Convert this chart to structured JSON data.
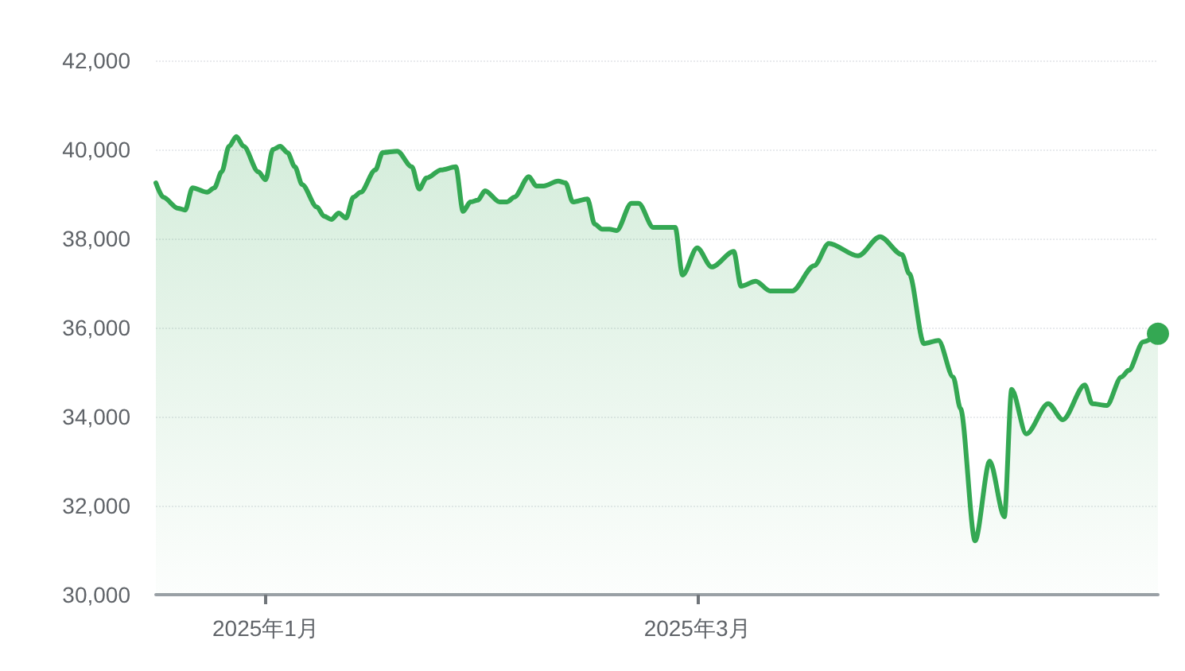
{
  "chart_data": {
    "type": "area",
    "x": [
      "2024-12-17",
      "2024-12-18",
      "2024-12-20",
      "2024-12-21",
      "2024-12-22",
      "2024-12-24",
      "2024-12-25",
      "2024-12-26",
      "2024-12-27",
      "2024-12-28",
      "2024-12-29",
      "2024-12-31",
      "2025-01-01",
      "2025-01-02",
      "2025-01-03",
      "2025-01-04",
      "2025-01-05",
      "2025-01-06",
      "2025-01-08",
      "2025-01-09",
      "2025-01-10",
      "2025-01-11",
      "2025-01-12",
      "2025-01-13",
      "2025-01-14",
      "2025-01-16",
      "2025-01-17",
      "2025-01-19",
      "2025-01-21",
      "2025-01-22",
      "2025-01-23",
      "2025-01-25",
      "2025-01-27",
      "2025-01-28",
      "2025-01-29",
      "2025-01-30",
      "2025-01-31",
      "2025-02-02",
      "2025-02-03",
      "2025-02-04",
      "2025-02-06",
      "2025-02-07",
      "2025-02-08",
      "2025-02-10",
      "2025-02-11",
      "2025-02-12",
      "2025-02-14",
      "2025-02-15",
      "2025-02-16",
      "2025-02-17",
      "2025-02-18",
      "2025-02-20",
      "2025-02-21",
      "2025-02-23",
      "2025-02-26",
      "2025-02-27",
      "2025-03-01",
      "2025-03-03",
      "2025-03-06",
      "2025-03-07",
      "2025-03-09",
      "2025-03-11",
      "2025-03-14",
      "2025-03-17",
      "2025-03-19",
      "2025-03-23",
      "2025-03-26",
      "2025-03-29",
      "2025-03-30",
      "2025-04-01",
      "2025-04-03",
      "2025-04-05",
      "2025-04-06",
      "2025-04-08",
      "2025-04-10",
      "2025-04-12",
      "2025-04-13",
      "2025-04-15",
      "2025-04-18",
      "2025-04-20",
      "2025-04-23",
      "2025-04-24",
      "2025-04-26",
      "2025-04-28",
      "2025-04-29",
      "2025-05-01",
      "2025-05-03"
    ],
    "series": [
      {
        "color": "#34a853",
        "values": [
          39250,
          38930,
          38680,
          38640,
          39140,
          39040,
          39140,
          39500,
          40070,
          40290,
          40070,
          39500,
          39320,
          40000,
          40070,
          39930,
          39610,
          39210,
          38710,
          38500,
          38430,
          38570,
          38460,
          38930,
          39040,
          39540,
          39930,
          39960,
          39610,
          39110,
          39360,
          39540,
          39610,
          38610,
          38820,
          38860,
          39070,
          38820,
          38820,
          38930,
          39390,
          39180,
          39180,
          39290,
          39250,
          38820,
          38890,
          38320,
          38210,
          38210,
          38180,
          38790,
          38790,
          38250,
          38250,
          37180,
          37790,
          37360,
          37710,
          36930,
          37040,
          36820,
          36820,
          37390,
          37890,
          37610,
          38040,
          37640,
          37210,
          35640,
          35710,
          34890,
          34180,
          31210,
          33000,
          31750,
          34610,
          33610,
          34290,
          33930,
          34710,
          34290,
          34250,
          34890,
          35040,
          35680,
          35860
        ]
      }
    ],
    "xlim": [
      "2024-12-17",
      "2025-05-03"
    ],
    "xticks": [
      {
        "value": "2025-01-01",
        "label": "2025年1月"
      },
      {
        "value": "2025-03-01",
        "label": "2025年3月"
      }
    ],
    "ylim": [
      30000,
      42000
    ],
    "yticks": [
      {
        "value": 30000,
        "label": "30,000"
      },
      {
        "value": 32000,
        "label": "32,000"
      },
      {
        "value": 34000,
        "label": "34,000"
      },
      {
        "value": 36000,
        "label": "36,000"
      },
      {
        "value": 38000,
        "label": "38,000"
      },
      {
        "value": 40000,
        "label": "40,000"
      },
      {
        "value": 42000,
        "label": "42,000"
      }
    ],
    "grid": "y",
    "marker": "none",
    "line_style": "solid"
  }
}
